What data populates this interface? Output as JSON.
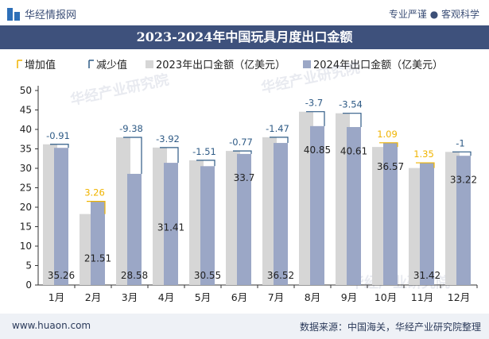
{
  "header": {
    "brand": "华经情报网",
    "tagline": "专业严谨 ● 客观科学",
    "title": "2023-2024年中国玩具月度出口金额"
  },
  "footer": {
    "url": "www.huaon.com",
    "source": "数据来源：中国海关，华经产业研究院整理"
  },
  "colors": {
    "bar2023": "#d6d6d6",
    "bar2024": "#9ba7c6",
    "increase": "#f0b400",
    "decrease": "#2f5b86",
    "header": "#3e517c"
  },
  "chart_data": {
    "type": "bar",
    "categories": [
      "1月",
      "2月",
      "3月",
      "4月",
      "5月",
      "6月",
      "7月",
      "8月",
      "9月",
      "10月",
      "11月",
      "12月"
    ],
    "series": [
      {
        "name": "2023年出口金额（亿美元）",
        "values": [
          36.17,
          18.25,
          37.96,
          35.33,
          32.06,
          34.47,
          37.99,
          44.55,
          44.15,
          35.48,
          30.07,
          34.22
        ]
      },
      {
        "name": "2024年出口金额（亿美元）",
        "values": [
          35.26,
          21.51,
          28.58,
          31.41,
          30.55,
          33.7,
          36.52,
          40.85,
          40.61,
          36.57,
          31.42,
          33.22
        ]
      }
    ],
    "change": [
      -0.91,
      3.26,
      -9.38,
      -3.92,
      -1.51,
      -0.77,
      -1.47,
      -3.7,
      -3.54,
      1.09,
      1.35,
      -1
    ],
    "change_labels": [
      "-0.91",
      "3.26",
      "-9.38",
      "-3.92",
      "-1.51",
      "-0.77",
      "-1.47",
      "-3.7",
      "-3.54",
      "1.09",
      "1.35",
      "-1"
    ],
    "value_labels_2024": [
      "35.26",
      "21.51",
      "28.58",
      "31.41",
      "30.55",
      "33.7",
      "36.52",
      "40.85",
      "40.61",
      "36.57",
      "31.42",
      "33.22"
    ],
    "legend": [
      "增加值",
      "减少值",
      "2023年出口金额（亿美元）",
      "2024年出口金额（亿美元）"
    ],
    "legend_position": "top-left",
    "yticks": [
      "0",
      "5",
      "10",
      "15",
      "20",
      "25",
      "30",
      "35",
      "40",
      "45",
      "50"
    ],
    "ylim": [
      0,
      50
    ],
    "grid": false
  }
}
